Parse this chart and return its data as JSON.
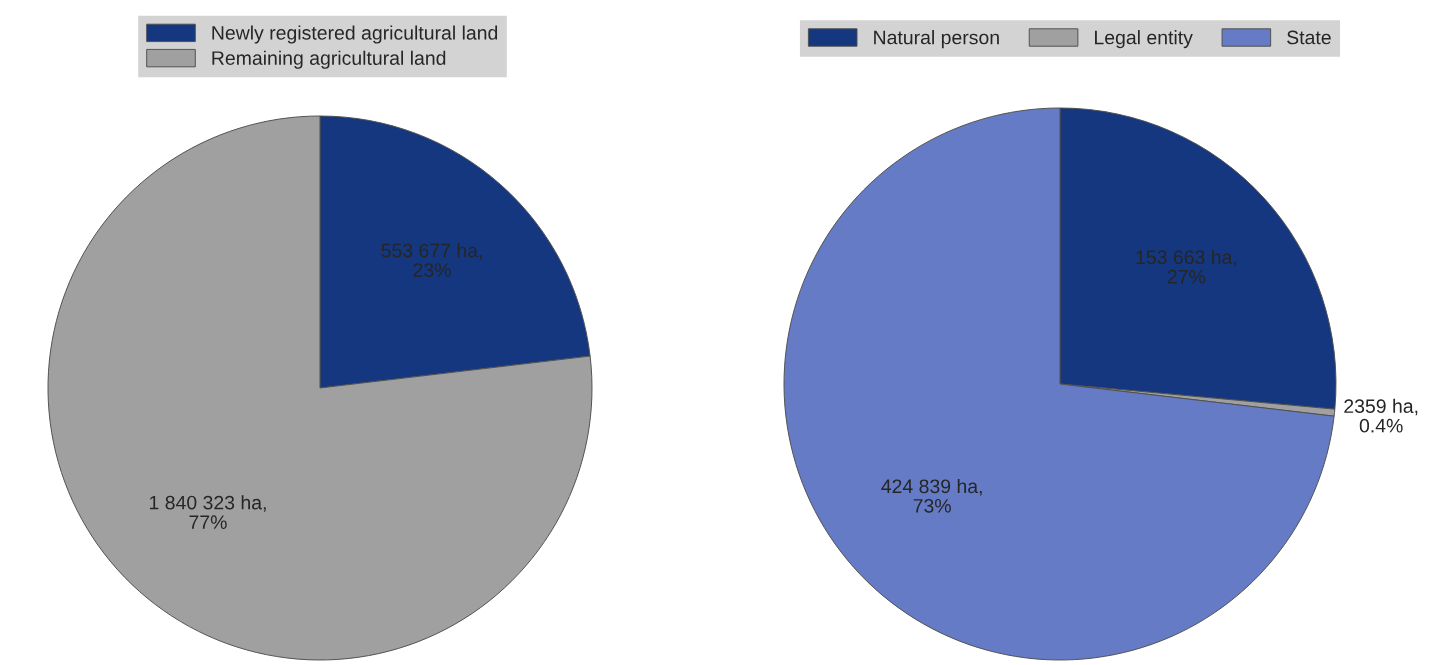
{
  "chart_data": [
    {
      "type": "pie",
      "categories": [
        "Newly registered agricultural land",
        "Remaining agricultural land"
      ],
      "values": [
        553677,
        1840323
      ],
      "colors": [
        "#14377f",
        "#a0a0a0"
      ],
      "value_labels": [
        "553 677 ha,\n23%",
        "1 840 323 ha,\n77%"
      ],
      "legend": "top"
    },
    {
      "type": "pie",
      "categories": [
        "Natural person",
        "Legal entity",
        "State"
      ],
      "values": [
        153663,
        2359,
        424839
      ],
      "colors": [
        "#14377f",
        "#a0a0a0",
        "#657bc6"
      ],
      "value_labels": [
        "153 663 ha,\n27%",
        "2359 ha,\n0.4%",
        "424 839 ha,\n73%"
      ],
      "legend": "top"
    }
  ]
}
